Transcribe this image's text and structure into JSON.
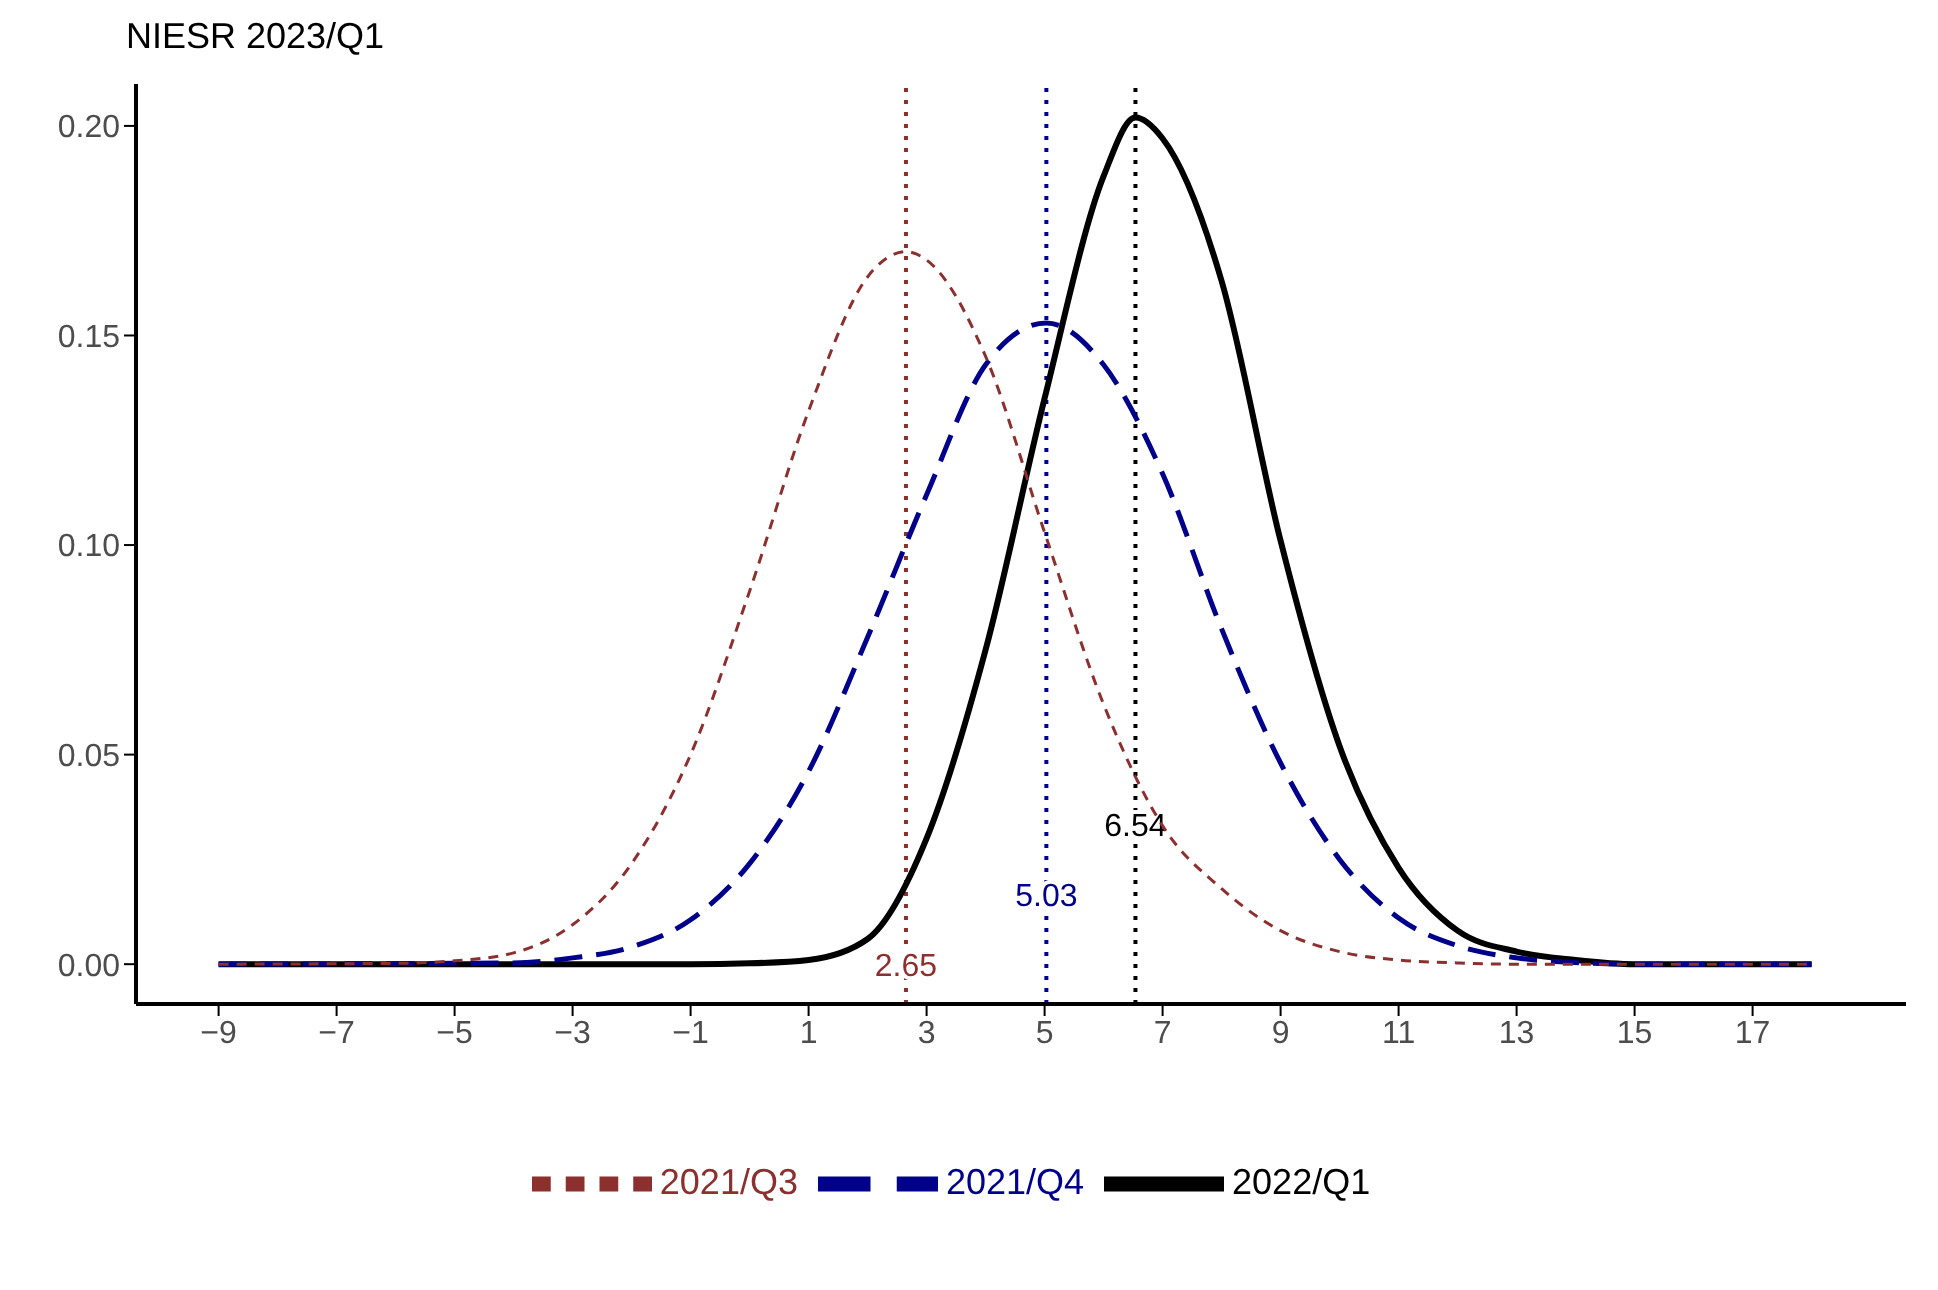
{
  "chart_data": {
    "type": "line",
    "title": "NIESR 2023/Q1",
    "xlim": [
      -10.4,
      19.6
    ],
    "xticks": [
      -9,
      -7,
      -5,
      -3,
      -1,
      1,
      3,
      5,
      7,
      9,
      11,
      13,
      15,
      17
    ],
    "ylim": [
      -0.0095,
      0.21
    ],
    "yticks": [
      {
        "value": 0,
        "label": "0.00"
      },
      {
        "value": 0.05,
        "label": "0.05"
      },
      {
        "value": 0.1,
        "label": "0.10"
      },
      {
        "value": 0.15,
        "label": "0.15"
      },
      {
        "value": 0.2,
        "label": "0.20"
      }
    ],
    "legend": "bottom",
    "marker": "none",
    "series": [
      {
        "name": "2021/Q3",
        "color": "#8b2f2f",
        "line_style": "dashed",
        "x": [
          -9,
          -6,
          -5,
          -4,
          -3,
          -2,
          -1,
          0,
          1,
          2,
          2.65,
          3,
          4,
          5,
          6,
          7,
          8,
          9,
          10,
          11,
          12,
          13,
          18
        ],
        "values": [
          0,
          0.0002,
          0.0008,
          0.0027,
          0.0094,
          0.024,
          0.05,
          0.089,
          0.132,
          0.164,
          0.17,
          0.168,
          0.145,
          0.103,
          0.062,
          0.033,
          0.018,
          0.008,
          0.003,
          0.001,
          0.0003,
          0,
          0
        ]
      },
      {
        "name": "2021/Q4",
        "color": "#00008b",
        "line_style": "dashed",
        "x": [
          -9,
          -4,
          -3,
          -2,
          -1,
          0,
          1,
          2,
          3,
          4,
          5.03,
          6,
          7,
          8,
          9,
          10,
          11,
          12,
          13,
          14,
          15,
          18
        ],
        "values": [
          0,
          0.0003,
          0.0015,
          0.0041,
          0.0106,
          0.024,
          0.046,
          0.078,
          0.112,
          0.143,
          0.153,
          0.143,
          0.117,
          0.08,
          0.048,
          0.025,
          0.011,
          0.0044,
          0.0015,
          0.0004,
          0,
          0
        ]
      },
      {
        "name": "2022/Q1",
        "color": "#000000",
        "line_style": "solid",
        "x": [
          -9,
          -1,
          0,
          1,
          2,
          3,
          4,
          5,
          6,
          6.54,
          7,
          8,
          9,
          10,
          11,
          12,
          13,
          14,
          15,
          18
        ],
        "values": [
          0,
          0,
          0.0002,
          0.001,
          0.006,
          0.03,
          0.075,
          0.135,
          0.188,
          0.202,
          0.197,
          0.163,
          0.101,
          0.052,
          0.023,
          0.008,
          0.003,
          0.001,
          0,
          0
        ]
      }
    ],
    "ref_lines": [
      {
        "axis": "x",
        "value": 2.65,
        "label": "2.65",
        "color": "#8b2f2f",
        "line_style": "dotted"
      },
      {
        "axis": "x",
        "value": 5.03,
        "label": "5.03",
        "color": "#00008b",
        "line_style": "dotted"
      },
      {
        "axis": "x",
        "value": 6.54,
        "label": "6.54",
        "color": "#000000",
        "line_style": "dotted"
      }
    ]
  }
}
